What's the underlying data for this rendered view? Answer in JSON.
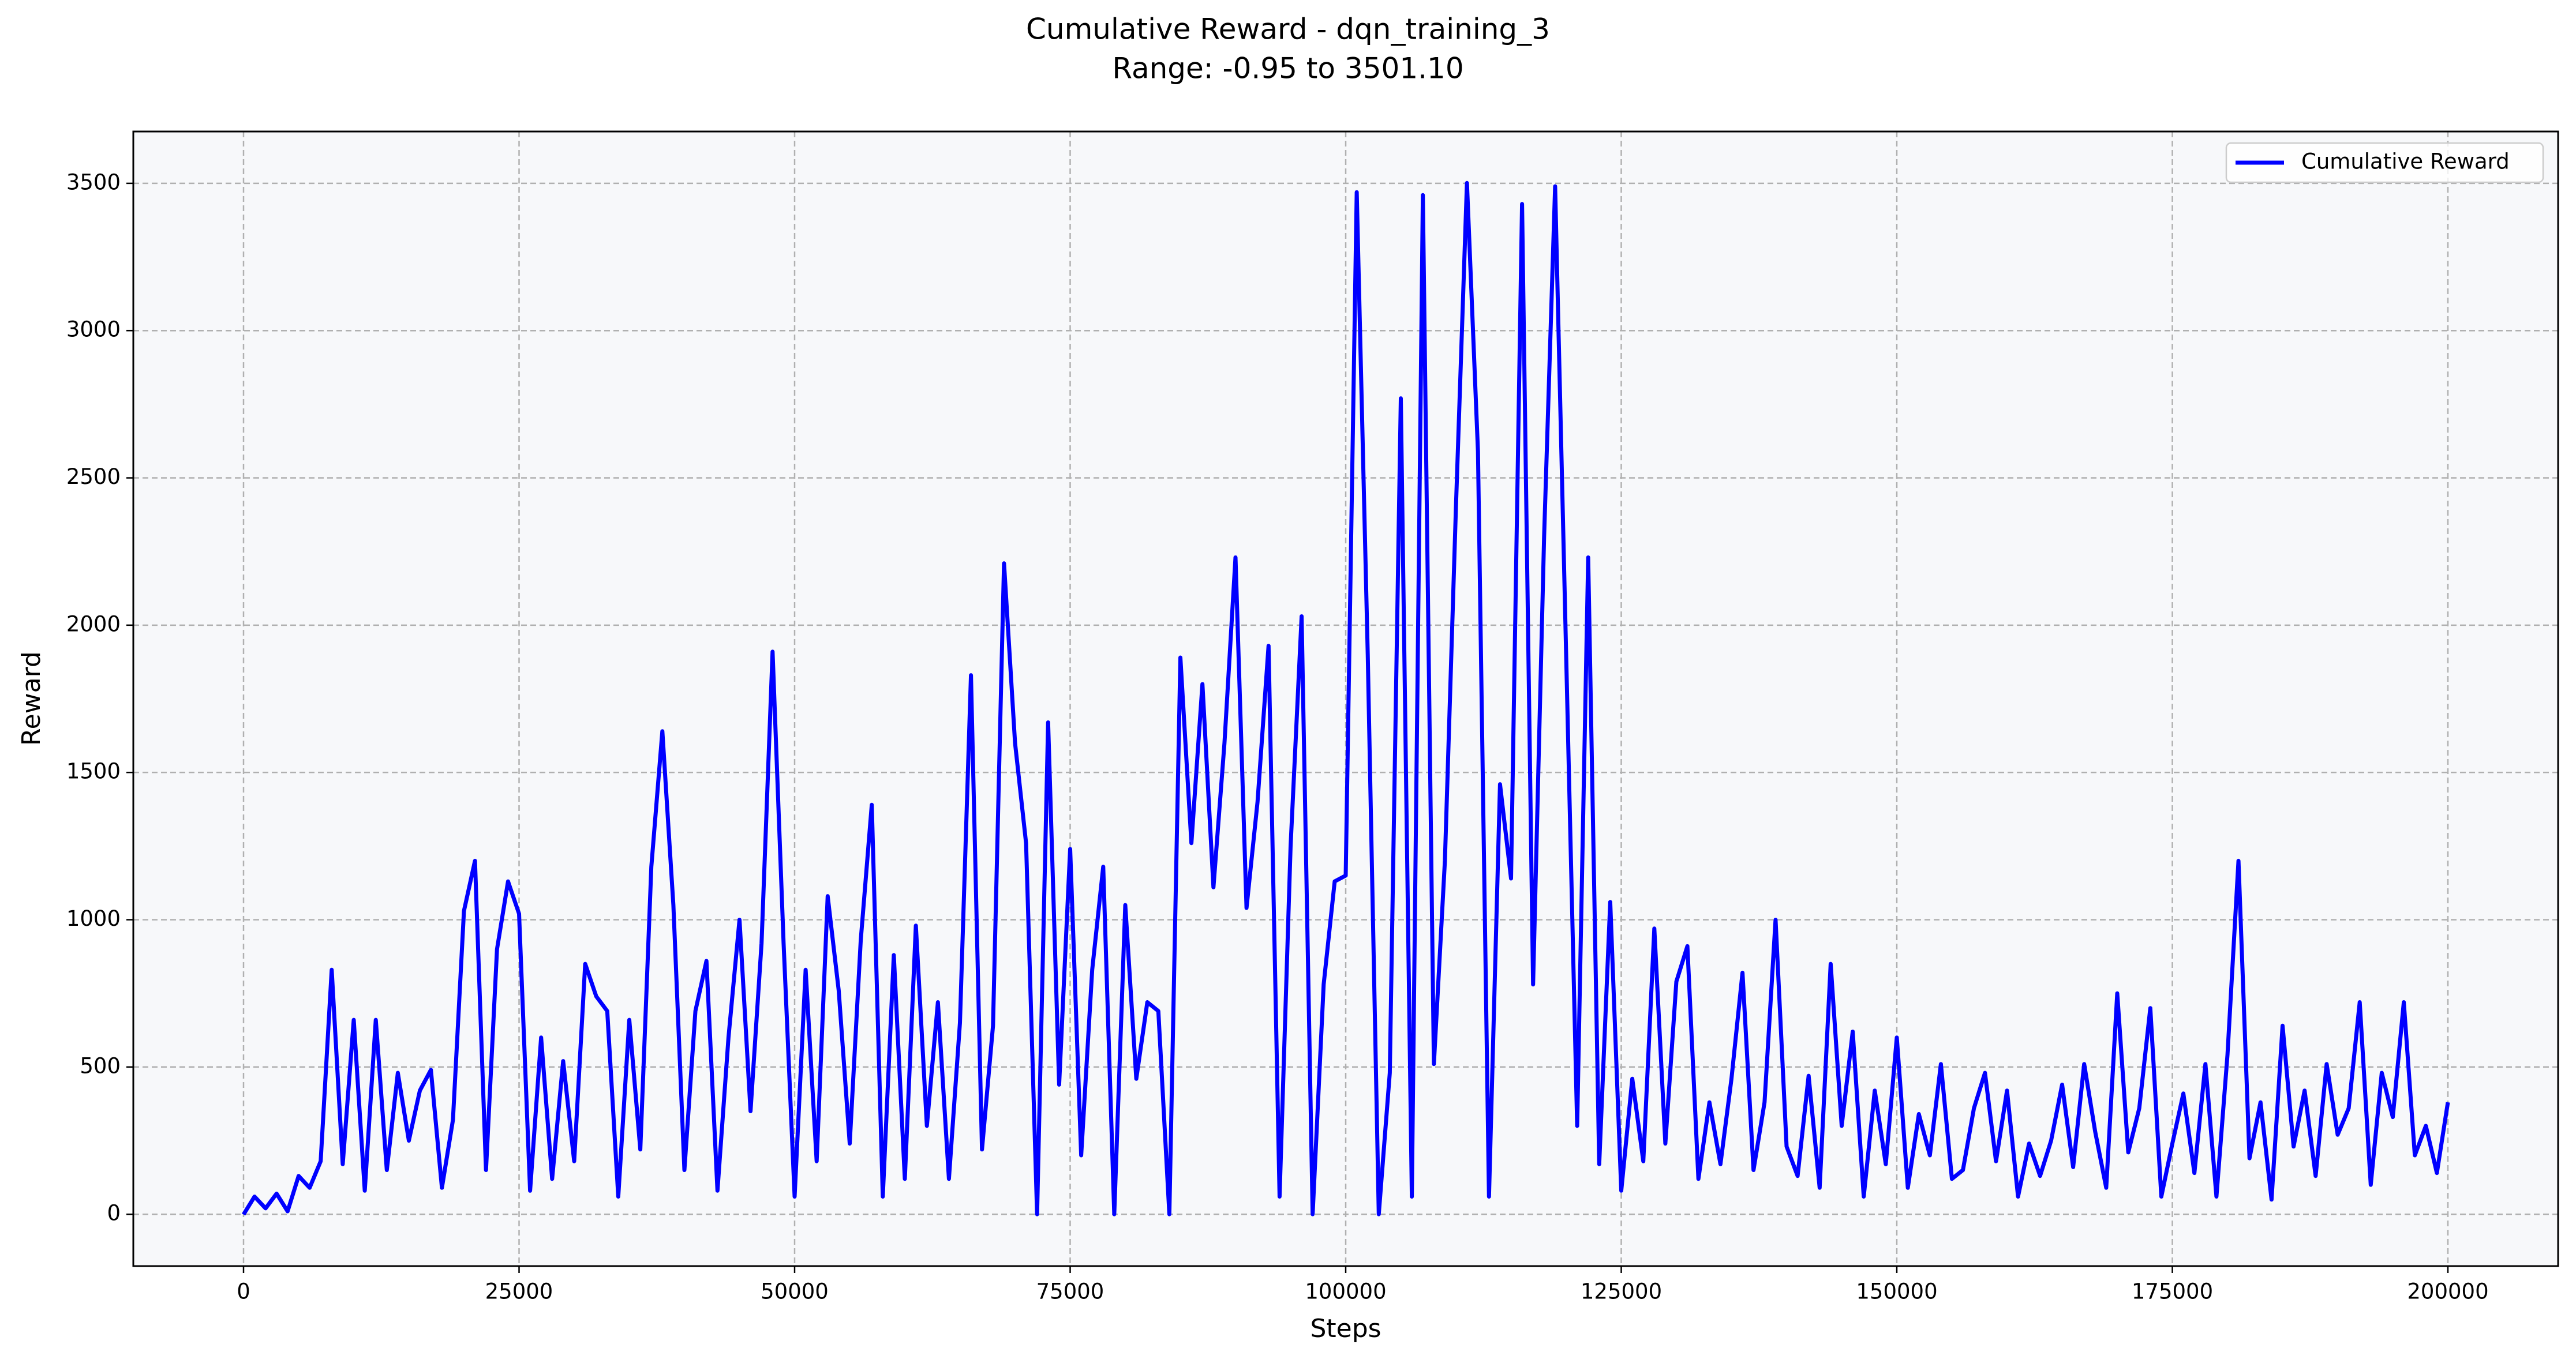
{
  "chart_data": {
    "type": "line",
    "title": "Cumulative Reward - dqn_training_3",
    "subtitle": "Range: -0.95 to 3501.10",
    "x_label": "Steps",
    "y_label": "Reward",
    "xlim": [
      -10000,
      210000
    ],
    "xticks": [
      0,
      25000,
      50000,
      75000,
      100000,
      125000,
      150000,
      175000,
      200000
    ],
    "ylim": [
      -176,
      3676
    ],
    "yticks": [
      0,
      500,
      1000,
      1500,
      2000,
      2500,
      3000,
      3500
    ],
    "grid": true,
    "legend": "upper right",
    "x": [
      0,
      1000,
      2000,
      3000,
      4000,
      5000,
      6000,
      7000,
      8000,
      9000,
      10000,
      11000,
      12000,
      13000,
      14000,
      15000,
      16000,
      17000,
      18000,
      19000,
      20000,
      21000,
      22000,
      23000,
      24000,
      25000,
      26000,
      27000,
      28000,
      29000,
      30000,
      31000,
      32000,
      33000,
      34000,
      35000,
      36000,
      37000,
      38000,
      39000,
      40000,
      41000,
      42000,
      43000,
      44000,
      45000,
      46000,
      47000,
      48000,
      49000,
      50000,
      51000,
      52000,
      53000,
      54000,
      55000,
      56000,
      57000,
      58000,
      59000,
      60000,
      61000,
      62000,
      63000,
      64000,
      65000,
      66000,
      67000,
      68000,
      69000,
      70000,
      71000,
      72000,
      73000,
      74000,
      75000,
      76000,
      77000,
      78000,
      79000,
      80000,
      81000,
      82000,
      83000,
      84000,
      85000,
      86000,
      87000,
      88000,
      89000,
      90000,
      91000,
      92000,
      93000,
      94000,
      95000,
      96000,
      97000,
      98000,
      99000,
      100000,
      101000,
      102000,
      103000,
      104000,
      105000,
      106000,
      107000,
      108000,
      109000,
      110000,
      111000,
      112000,
      113000,
      114000,
      115000,
      116000,
      117000,
      118000,
      119000,
      120000,
      121000,
      122000,
      123000,
      124000,
      125000,
      126000,
      127000,
      128000,
      129000,
      130000,
      131000,
      132000,
      133000,
      134000,
      135000,
      136000,
      137000,
      138000,
      139000,
      140000,
      141000,
      142000,
      143000,
      144000,
      145000,
      146000,
      147000,
      148000,
      149000,
      150000,
      151000,
      152000,
      153000,
      154000,
      155000,
      156000,
      157000,
      158000,
      159000,
      160000,
      161000,
      162000,
      163000,
      164000,
      165000,
      166000,
      167000,
      168000,
      169000,
      170000,
      171000,
      172000,
      173000,
      174000,
      175000,
      176000,
      177000,
      178000,
      179000,
      180000,
      181000,
      182000,
      183000,
      184000,
      185000,
      186000,
      187000,
      188000,
      189000,
      190000,
      191000,
      192000,
      193000,
      194000,
      195000,
      196000,
      197000,
      198000,
      199000,
      200000
    ],
    "series": [
      {
        "name": "Cumulative Reward",
        "color": "#0000ff",
        "values": [
          -0.95,
          60,
          20,
          70,
          10,
          130,
          90,
          180,
          830,
          170,
          660,
          80,
          660,
          150,
          480,
          250,
          420,
          490,
          90,
          320,
          1030,
          1200,
          150,
          900,
          1130,
          1020,
          80,
          600,
          120,
          520,
          180,
          850,
          740,
          690,
          60,
          660,
          220,
          1180,
          1640,
          1050,
          150,
          690,
          860,
          80,
          600,
          1000,
          350,
          920,
          1910,
          920,
          60,
          830,
          180,
          1080,
          760,
          240,
          930,
          1390,
          60,
          880,
          120,
          980,
          300,
          720,
          120,
          650,
          1830,
          220,
          640,
          2210,
          1600,
          1260,
          0,
          1670,
          440,
          1240,
          200,
          830,
          1180,
          0,
          1050,
          460,
          720,
          690,
          0,
          1890,
          1260,
          1800,
          1110,
          1600,
          2230,
          1040,
          1400,
          1930,
          60,
          1250,
          2030,
          0,
          780,
          1130,
          1150,
          3470,
          1900,
          0,
          480,
          2770,
          60,
          3460,
          510,
          1200,
          2400,
          3501.1,
          2590,
          60,
          1460,
          1140,
          3430,
          780,
          2300,
          3490,
          1900,
          300,
          2230,
          170,
          1060,
          80,
          460,
          180,
          970,
          240,
          790,
          910,
          120,
          380,
          170,
          460,
          820,
          150,
          380,
          1000,
          230,
          130,
          470,
          90,
          850,
          300,
          620,
          60,
          420,
          170,
          600,
          90,
          340,
          200,
          510,
          120,
          150,
          360,
          480,
          180,
          420,
          60,
          240,
          130,
          250,
          440,
          160,
          510,
          280,
          90,
          750,
          210,
          360,
          700,
          60,
          240,
          410,
          140,
          510,
          60,
          540,
          1200,
          190,
          380,
          50,
          640,
          230,
          420,
          130,
          510,
          270,
          360,
          720,
          100,
          480,
          330,
          720,
          200,
          300,
          140,
          380
        ]
      }
    ]
  }
}
